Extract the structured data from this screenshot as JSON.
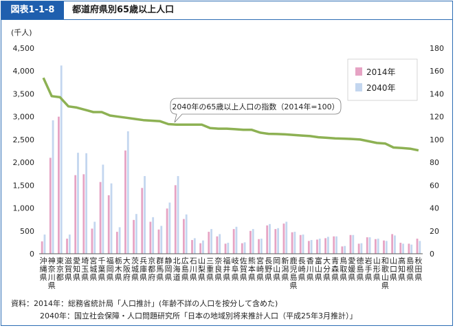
{
  "header": {
    "badge": "図表1-1-8",
    "title": "都道府県別65歳以上人口"
  },
  "source": {
    "line1": "資料：2014年：総務省統計局「人口推計」(年齢不詳の人口を按分して含めた)",
    "line2": "2040年：国立社会保障・人口問題研究所「日本の地域別将来推計人口（平成25年3月推計）」"
  },
  "colors": {
    "bar2014": "#e6a3c4",
    "bar2040": "#c3d6ef",
    "line": "#8db153",
    "frame": "#2a6bb3"
  },
  "chart_data": {
    "type": "bar",
    "ylabel": "(千人)",
    "ylim": [
      0,
      4500
    ],
    "y2lim": [
      0,
      180
    ],
    "yticks": [
      "0",
      "500",
      "1,000",
      "1,500",
      "2,000",
      "2,500",
      "3,000",
      "3,500",
      "4,000",
      "4,500"
    ],
    "y2ticks": [
      "0",
      "20",
      "40",
      "60",
      "80",
      "100",
      "120",
      "140",
      "160",
      "180"
    ],
    "grid": false,
    "legend_position": "top-right",
    "categories": [
      "沖縄県",
      "神奈川県",
      "東京都",
      "滋賀県",
      "愛知県",
      "埼玉県",
      "宮城県",
      "千葉県",
      "福岡県",
      "栃木県",
      "大阪府",
      "茨城県",
      "兵庫県",
      "京都府",
      "群馬県",
      "静岡県",
      "北海道",
      "広島県",
      "石川県",
      "山梨県",
      "三重県",
      "奈良県",
      "福井県",
      "岐阜県",
      "佐賀県",
      "熊本県",
      "宮崎県",
      "長野県",
      "岡山県",
      "新潟県",
      "鹿児島県",
      "長崎県",
      "香川県",
      "富山県",
      "大分県",
      "青森県",
      "鳥取県",
      "愛媛県",
      "徳島県",
      "岩手県",
      "山形県",
      "和歌山県",
      "山口県",
      "高知県",
      "島根県",
      "秋田県"
    ],
    "series": [
      {
        "name": "2014年",
        "values": [
          270,
          2100,
          3000,
          330,
          1720,
          1740,
          550,
          1570,
          1280,
          480,
          2260,
          740,
          1440,
          700,
          530,
          990,
          1500,
          760,
          300,
          230,
          480,
          380,
          220,
          540,
          230,
          500,
          320,
          620,
          540,
          660,
          470,
          410,
          280,
          310,
          340,
          380,
          160,
          410,
          220,
          360,
          320,
          290,
          430,
          240,
          220,
          330
        ]
      },
      {
        "name": "2040年",
        "values": [
          420,
          2920,
          4120,
          420,
          2210,
          2200,
          700,
          1950,
          1540,
          580,
          2680,
          870,
          1700,
          800,
          610,
          1120,
          1700,
          860,
          340,
          290,
          540,
          430,
          240,
          590,
          250,
          540,
          330,
          650,
          560,
          700,
          480,
          420,
          300,
          330,
          370,
          380,
          170,
          410,
          230,
          360,
          330,
          280,
          400,
          220,
          200,
          280
        ]
      },
      {
        "name": "2040年の65歳以上人口の指数（2014年=100）",
        "values": [
          154,
          138,
          137,
          129,
          128,
          126,
          124,
          124,
          121,
          120,
          119,
          118,
          117,
          116.5,
          116,
          113.5,
          113,
          113,
          113,
          113,
          110,
          109.5,
          109.5,
          109,
          108.5,
          108.5,
          106,
          105,
          104.8,
          104.5,
          104,
          103.5,
          103,
          102,
          101.5,
          101,
          100.8,
          100.5,
          100,
          98.5,
          97,
          96.5,
          93,
          92.5,
          92,
          90.5
        ]
      }
    ]
  }
}
